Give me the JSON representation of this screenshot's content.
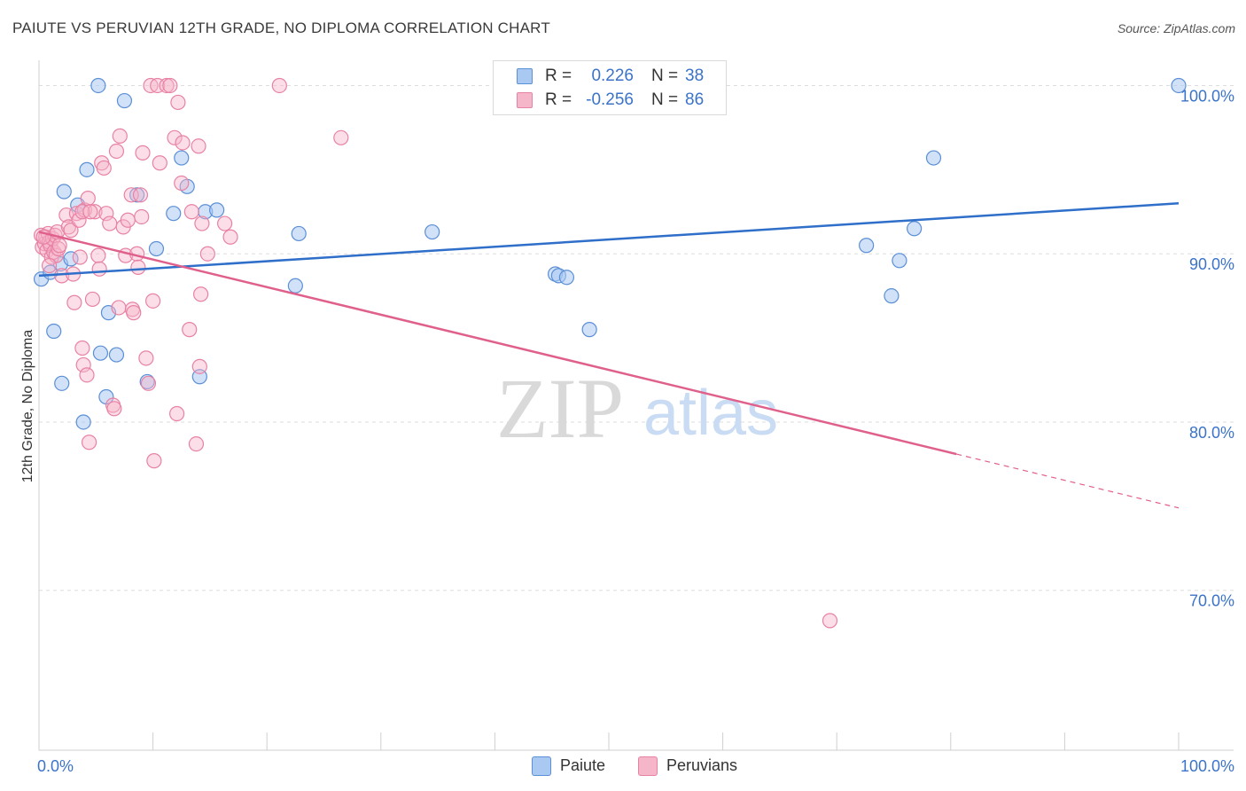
{
  "title": "PAIUTE VS PERUVIAN 12TH GRADE, NO DIPLOMA CORRELATION CHART",
  "source": "Source: ZipAtlas.com",
  "watermark": {
    "zip": "ZIP",
    "atlas": "atlas"
  },
  "legend": {
    "paiute": {
      "r_label": "R =",
      "r_value": "0.226",
      "n_label": "N =",
      "n_value": "38"
    },
    "peruvians": {
      "r_label": "R =",
      "r_value": "-0.256",
      "n_label": "N =",
      "n_value": "86"
    }
  },
  "bottom_legend": {
    "paiute": "Paiute",
    "peruvians": "Peruvians"
  },
  "colors": {
    "paiute_fill": "#a9c8f2",
    "paiute_stroke": "#5b8fd6",
    "paiute_line": "#2f6fc9",
    "peru_fill": "#f6b6ca",
    "peru_stroke": "#e882a4",
    "peru_line": "#e0608c",
    "axis_label": "#3b73c9",
    "grid": "#dddddd"
  },
  "chart_data": {
    "type": "scatter",
    "title": "PAIUTE VS PERUVIAN 12TH GRADE, NO DIPLOMA CORRELATION CHART",
    "xlabel": "",
    "ylabel": "12th Grade, No Diploma",
    "xlim": [
      0,
      100
    ],
    "ylim": [
      60.5,
      101.5
    ],
    "x_tick_labels": [
      "0.0%",
      "100.0%"
    ],
    "y_ticks": [
      100,
      90,
      80,
      70
    ],
    "y_tick_labels": [
      "100.0%",
      "90.0%",
      "80.0%",
      "70.0%"
    ],
    "series": [
      {
        "name": "Paiute",
        "R": 0.226,
        "N": 38,
        "trend": {
          "x0": 0,
          "y0": 88.7,
          "x1": 100,
          "y1": 93.0
        },
        "points": [
          [
            0.2,
            88.5
          ],
          [
            1.0,
            88.9
          ],
          [
            1.3,
            85.4
          ],
          [
            1.9,
            89.4
          ],
          [
            2.2,
            93.7
          ],
          [
            2.8,
            89.7
          ],
          [
            3.4,
            92.9
          ],
          [
            3.9,
            80.0
          ],
          [
            4.2,
            95.0
          ],
          [
            5.2,
            100.0
          ],
          [
            5.4,
            84.1
          ],
          [
            5.9,
            81.5
          ],
          [
            6.1,
            86.5
          ],
          [
            6.8,
            84.0
          ],
          [
            7.5,
            99.1
          ],
          [
            8.6,
            93.5
          ],
          [
            9.5,
            82.4
          ],
          [
            10.3,
            90.3
          ],
          [
            11.8,
            92.4
          ],
          [
            12.5,
            95.7
          ],
          [
            13.0,
            94.0
          ],
          [
            14.1,
            82.7
          ],
          [
            14.6,
            92.5
          ],
          [
            15.6,
            92.6
          ],
          [
            22.5,
            88.1
          ],
          [
            22.8,
            91.2
          ],
          [
            34.5,
            91.3
          ],
          [
            45.3,
            88.8
          ],
          [
            45.6,
            88.7
          ],
          [
            46.3,
            88.6
          ],
          [
            48.3,
            85.5
          ],
          [
            72.6,
            90.5
          ],
          [
            74.8,
            87.5
          ],
          [
            75.5,
            89.6
          ],
          [
            76.8,
            91.5
          ],
          [
            78.5,
            95.7
          ],
          [
            100.0,
            100.0
          ],
          [
            2.0,
            82.3
          ]
        ]
      },
      {
        "name": "Peruvians",
        "R": -0.256,
        "N": 86,
        "trend": {
          "x0": 0,
          "y0": 91.3,
          "x1": 80.5,
          "y1": 78.1
        },
        "trend_dashed": {
          "x0": 80.5,
          "y0": 78.1,
          "x1": 100,
          "y1": 74.9
        },
        "points": [
          [
            0.2,
            91.1
          ],
          [
            0.3,
            90.4
          ],
          [
            0.5,
            90.6
          ],
          [
            0.6,
            91.0
          ],
          [
            0.7,
            90.2
          ],
          [
            0.8,
            91.2
          ],
          [
            0.9,
            90.7
          ],
          [
            1.0,
            90.5
          ],
          [
            1.1,
            89.8
          ],
          [
            1.2,
            90.9
          ],
          [
            1.3,
            90.1
          ],
          [
            1.4,
            91.1
          ],
          [
            1.5,
            89.9
          ],
          [
            1.6,
            91.3
          ],
          [
            1.7,
            90.3
          ],
          [
            1.8,
            90.5
          ],
          [
            2.0,
            88.7
          ],
          [
            2.4,
            92.3
          ],
          [
            2.6,
            91.6
          ],
          [
            2.8,
            91.4
          ],
          [
            3.0,
            88.8
          ],
          [
            3.1,
            87.1
          ],
          [
            3.3,
            92.4
          ],
          [
            3.5,
            92.0
          ],
          [
            3.6,
            89.8
          ],
          [
            3.8,
            84.4
          ],
          [
            3.9,
            83.4
          ],
          [
            4.0,
            92.6
          ],
          [
            4.2,
            82.8
          ],
          [
            4.3,
            93.3
          ],
          [
            4.4,
            78.8
          ],
          [
            4.7,
            87.3
          ],
          [
            4.9,
            92.5
          ],
          [
            5.2,
            89.9
          ],
          [
            5.3,
            89.1
          ],
          [
            5.5,
            95.4
          ],
          [
            5.7,
            95.1
          ],
          [
            5.9,
            92.4
          ],
          [
            6.2,
            91.8
          ],
          [
            6.5,
            81.0
          ],
          [
            6.6,
            80.8
          ],
          [
            6.8,
            96.1
          ],
          [
            7.0,
            86.8
          ],
          [
            7.1,
            97.0
          ],
          [
            7.4,
            91.6
          ],
          [
            7.6,
            89.9
          ],
          [
            7.8,
            92.0
          ],
          [
            8.1,
            93.5
          ],
          [
            8.2,
            86.7
          ],
          [
            8.3,
            86.5
          ],
          [
            8.6,
            90.0
          ],
          [
            8.7,
            89.2
          ],
          [
            8.9,
            93.5
          ],
          [
            9.0,
            92.2
          ],
          [
            9.1,
            96.0
          ],
          [
            9.4,
            83.8
          ],
          [
            9.6,
            82.3
          ],
          [
            9.8,
            100.0
          ],
          [
            10.0,
            87.2
          ],
          [
            10.1,
            77.7
          ],
          [
            10.4,
            100.0
          ],
          [
            10.6,
            95.4
          ],
          [
            11.2,
            100.0
          ],
          [
            11.5,
            100.0
          ],
          [
            11.9,
            96.9
          ],
          [
            12.1,
            80.5
          ],
          [
            12.2,
            99.0
          ],
          [
            12.5,
            94.2
          ],
          [
            12.6,
            96.6
          ],
          [
            13.2,
            85.5
          ],
          [
            13.4,
            92.5
          ],
          [
            13.8,
            78.7
          ],
          [
            14.0,
            96.4
          ],
          [
            14.1,
            83.3
          ],
          [
            14.2,
            87.6
          ],
          [
            14.3,
            91.8
          ],
          [
            14.8,
            90.0
          ],
          [
            16.3,
            91.8
          ],
          [
            16.8,
            91.0
          ],
          [
            21.1,
            100.0
          ],
          [
            26.5,
            96.9
          ],
          [
            0.4,
            91.0
          ],
          [
            0.9,
            89.3
          ],
          [
            3.8,
            92.5
          ],
          [
            4.5,
            92.5
          ],
          [
            69.4,
            68.2
          ]
        ]
      }
    ]
  }
}
